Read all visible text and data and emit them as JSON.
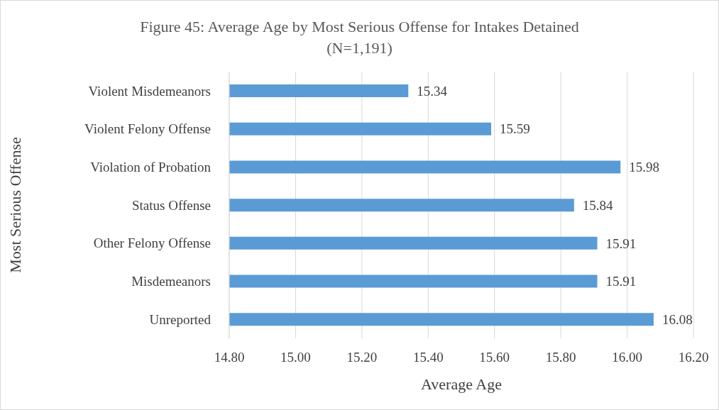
{
  "chart_data": {
    "type": "bar",
    "orientation": "horizontal",
    "title": "Figure 45: Average Age by Most Serious Offense for Intakes Detained\n(N=1,191)",
    "xlabel": "Average Age",
    "ylabel": "Most Serious Offense",
    "categories": [
      "Violent Misdemeanors",
      "Violent Felony Offense",
      "Violation of Probation",
      "Status Offense",
      "Other Felony Offense",
      "Misdemeanors",
      "Unreported"
    ],
    "values": [
      15.34,
      15.59,
      15.98,
      15.84,
      15.91,
      15.91,
      16.08
    ],
    "color": "#5b9bd5",
    "data_labels": true,
    "grid": "x",
    "xlim": [
      14.8,
      16.2
    ],
    "xticks": [
      {
        "value": 14.8,
        "label": "14.80"
      },
      {
        "value": 15.0,
        "label": "15.00"
      },
      {
        "value": 15.2,
        "label": "15.20"
      },
      {
        "value": 15.4,
        "label": "15.40"
      },
      {
        "value": 15.6,
        "label": "15.60"
      },
      {
        "value": 15.8,
        "label": "15.80"
      },
      {
        "value": 16.0,
        "label": "16.00"
      },
      {
        "value": 16.2,
        "label": "16.20"
      }
    ]
  }
}
